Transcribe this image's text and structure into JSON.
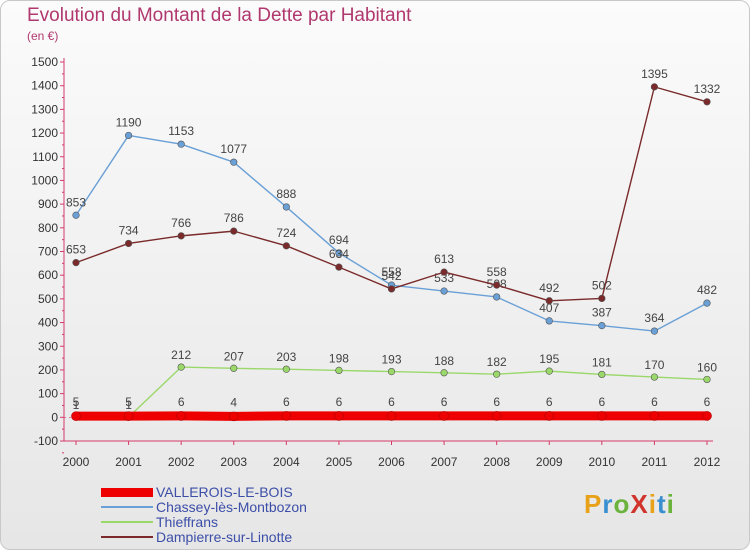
{
  "header": {
    "title": "Evolution du Montant de la Dette par Habitant",
    "subtitle": "(en €)"
  },
  "logo": {
    "text": "ProXiti",
    "colors": [
      "#e8a21a",
      "#3a8fd0",
      "#6cb33e",
      "#d0342c",
      "#e8a21a",
      "#3a8fd0",
      "#6cb33e"
    ]
  },
  "chart_data": {
    "type": "line",
    "title": "Evolution du Montant de la Dette par Habitant",
    "subtitle": "(en €)",
    "x": [
      "2000",
      "2001",
      "2002",
      "2003",
      "2004",
      "2005",
      "2006",
      "2007",
      "2008",
      "2009",
      "2010",
      "2011",
      "2012"
    ],
    "ylim": [
      -100,
      1500
    ],
    "yticks": [
      -100,
      0,
      100,
      200,
      300,
      400,
      500,
      600,
      700,
      800,
      900,
      1000,
      1100,
      1200,
      1300,
      1400,
      1500
    ],
    "grid": false,
    "legend_position": "bottom",
    "series": [
      {
        "name": "VALLEROIS-LE-BOIS",
        "color": "#ee0000",
        "values": [
          5,
          5,
          6,
          4,
          6,
          6,
          6,
          6,
          6,
          6,
          6,
          6,
          6
        ]
      },
      {
        "name": "Chassey-lès-Montbozon",
        "color": "#6aa0d6",
        "values": [
          853,
          1190,
          1153,
          1077,
          888,
          694,
          558,
          533,
          508,
          407,
          387,
          364,
          482
        ]
      },
      {
        "name": "Thieffrans",
        "color": "#9ad86a",
        "values": [
          1,
          1,
          212,
          207,
          203,
          198,
          193,
          188,
          182,
          195,
          181,
          170,
          160
        ]
      },
      {
        "name": "Dampierre-sur-Linotte",
        "color": "#7a2a2a",
        "values": [
          653,
          734,
          766,
          786,
          724,
          634,
          542,
          613,
          558,
          492,
          502,
          1395,
          1332
        ]
      }
    ]
  }
}
